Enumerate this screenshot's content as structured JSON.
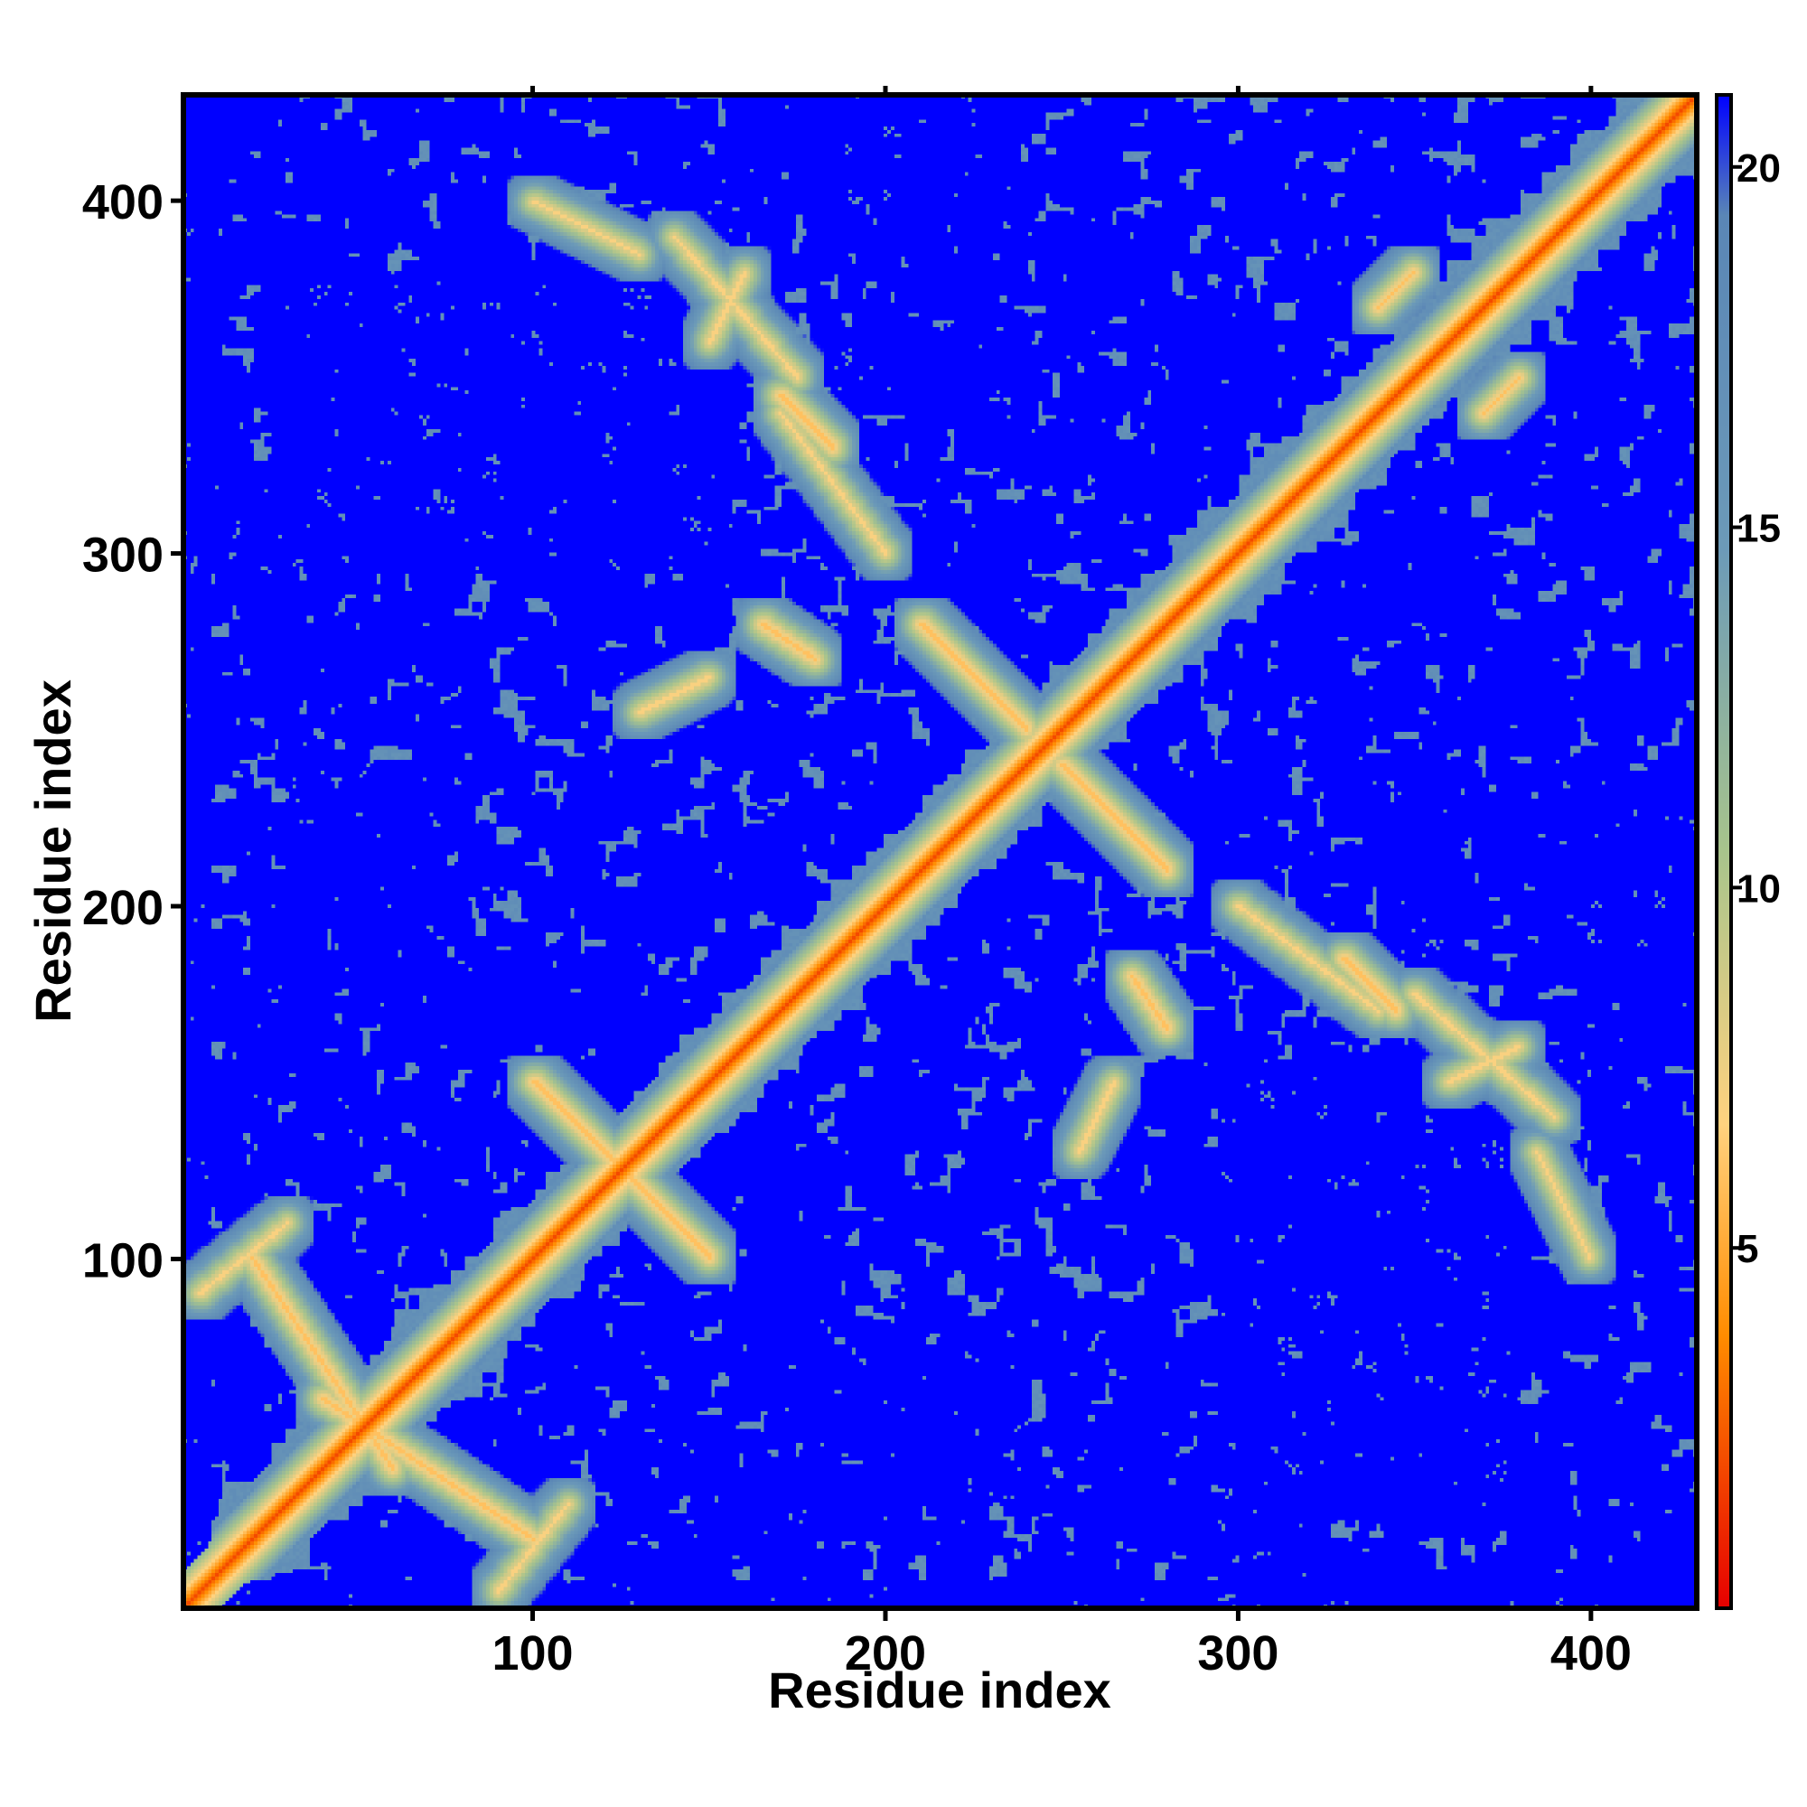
{
  "chart_data": {
    "type": "heatmap",
    "title": "",
    "xlabel": "Residue index",
    "ylabel": "Residue index",
    "xlim": [
      1,
      430
    ],
    "ylim": [
      1,
      430
    ],
    "x_ticks": [
      100,
      200,
      300,
      400
    ],
    "y_ticks": [
      100,
      200,
      300,
      400
    ],
    "colorbar": {
      "ticks": [
        5,
        10,
        15,
        20
      ],
      "range": [
        0,
        21
      ],
      "colors": [
        "#e60000",
        "#ff8c00",
        "#ffd27f",
        "#a8c48c",
        "#6c9ab8",
        "#5a86b6",
        "#0000ff"
      ],
      "stops": [
        0,
        0.18,
        0.32,
        0.5,
        0.7,
        0.92,
        1
      ]
    },
    "colors": {
      "low": "#e60000",
      "mid_low": "#ff8c00",
      "mid": "#c8d49a",
      "background": "#5a86b6",
      "high": "#0000ff"
    },
    "features": {
      "diagonal_value": 2,
      "background_value": 17,
      "off_diagonal_contacts": [
        {
          "from": [
            20,
            100
          ],
          "to": [
            60,
            40
          ],
          "value": 6
        },
        {
          "from": [
            90,
            5
          ],
          "to": [
            110,
            30
          ],
          "value": 7
        },
        {
          "from": [
            100,
            150
          ],
          "to": [
            150,
            100
          ],
          "value": 6
        },
        {
          "from": [
            170,
            345
          ],
          "to": [
            185,
            330
          ],
          "value": 6
        },
        {
          "from": [
            140,
            390
          ],
          "to": [
            175,
            350
          ],
          "value": 7
        },
        {
          "from": [
            250,
            240
          ],
          "to": [
            280,
            210
          ],
          "value": 6
        },
        {
          "from": [
            300,
            200
          ],
          "to": [
            340,
            170
          ],
          "value": 7
        },
        {
          "from": [
            350,
            380
          ],
          "to": [
            340,
            370
          ],
          "value": 6
        },
        {
          "from": [
            385,
            130
          ],
          "to": [
            400,
            100
          ],
          "value": 7
        },
        {
          "from": [
            380,
            160
          ],
          "to": [
            360,
            150
          ],
          "value": 7
        },
        {
          "from": [
            255,
            130
          ],
          "to": [
            265,
            150
          ],
          "value": 7
        },
        {
          "from": [
            180,
            270
          ],
          "to": [
            165,
            280
          ],
          "value": 6
        }
      ],
      "high_distance_blocks": [
        {
          "x": [
            5,
            150
          ],
          "y": [
            295,
            325
          ],
          "value": 21
        },
        {
          "x": [
            195,
            240
          ],
          "y": [
            340,
            360
          ],
          "value": 21
        },
        {
          "x": [
            320,
            380
          ],
          "y": [
            30,
            150
          ],
          "value": 21
        },
        {
          "x": [
            400,
            430
          ],
          "y": [
            180,
            240
          ],
          "value": 21
        },
        {
          "x": [
            345,
            365
          ],
          "y": [
            180,
            240
          ],
          "value": 21
        },
        {
          "x": [
            200,
            230
          ],
          "y": [
            380,
            400
          ],
          "value": 21
        },
        {
          "x": [
            30,
            70
          ],
          "y": [
            170,
            240
          ],
          "value": 21
        },
        {
          "x": [
            1,
            8
          ],
          "y": [
            1,
            430
          ],
          "value": 21
        },
        {
          "x": [
            1,
            430
          ],
          "y": [
            1,
            8
          ],
          "value": 21
        }
      ]
    }
  },
  "labels": {
    "x_title": "Residue index",
    "y_title": "Residue index",
    "x_tick_labels": [
      "100",
      "200",
      "300",
      "400"
    ],
    "y_tick_labels": [
      "100",
      "200",
      "300",
      "400"
    ],
    "colorbar_tick_labels": [
      "5",
      "10",
      "15",
      "20"
    ]
  }
}
